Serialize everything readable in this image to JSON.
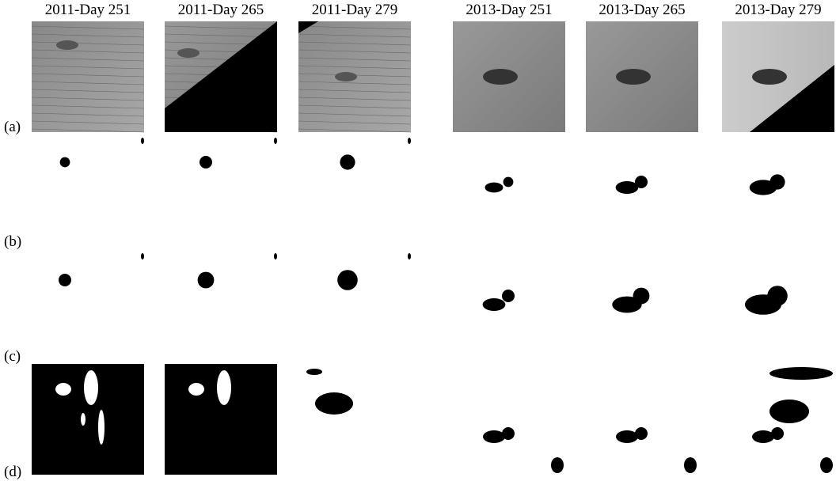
{
  "columns": [
    "2011-Day 251",
    "2011-Day 265",
    "2011-Day 279",
    "2013-Day 251",
    "2013-Day 265",
    "2013-Day 279"
  ],
  "rows": [
    "(a)",
    "(b)",
    "(c)",
    "(d)"
  ]
}
